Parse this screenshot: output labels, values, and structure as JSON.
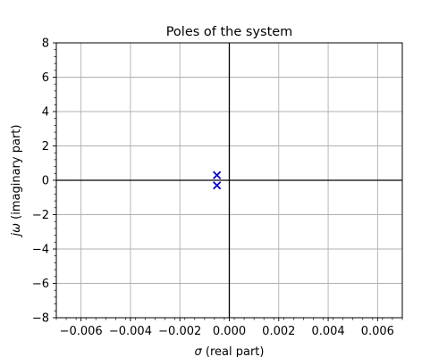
{
  "chart_data": {
    "type": "scatter",
    "title": "Poles of the system",
    "xlabel": {
      "symbol": "σ",
      "text": " (real part)"
    },
    "ylabel": {
      "symbol": "jω",
      "text": " (imaginary part)"
    },
    "xlim": [
      -0.007,
      0.007
    ],
    "ylim": [
      -8,
      8
    ],
    "xticks": [
      -0.006,
      -0.004,
      -0.002,
      0.0,
      0.002,
      0.004,
      0.006
    ],
    "xtick_labels": [
      "−0.006",
      "−0.004",
      "−0.002",
      "0.000",
      "0.002",
      "0.004",
      "0.006"
    ],
    "yticks": [
      -8,
      -6,
      -4,
      -2,
      0,
      2,
      4,
      6,
      8
    ],
    "ytick_labels": [
      "−8",
      "−6",
      "−4",
      "−2",
      "0",
      "2",
      "4",
      "6",
      "8"
    ],
    "grid": true,
    "reference_lines": {
      "x": 0,
      "y": 0
    },
    "series": [
      {
        "marker": "x",
        "color": "#0000cc",
        "points": [
          {
            "x": -0.0005,
            "y": 0.3
          },
          {
            "x": -0.0005,
            "y": -0.3
          }
        ]
      }
    ],
    "colors": {
      "grid": "#b0b0b0",
      "axis": "#000000"
    }
  }
}
